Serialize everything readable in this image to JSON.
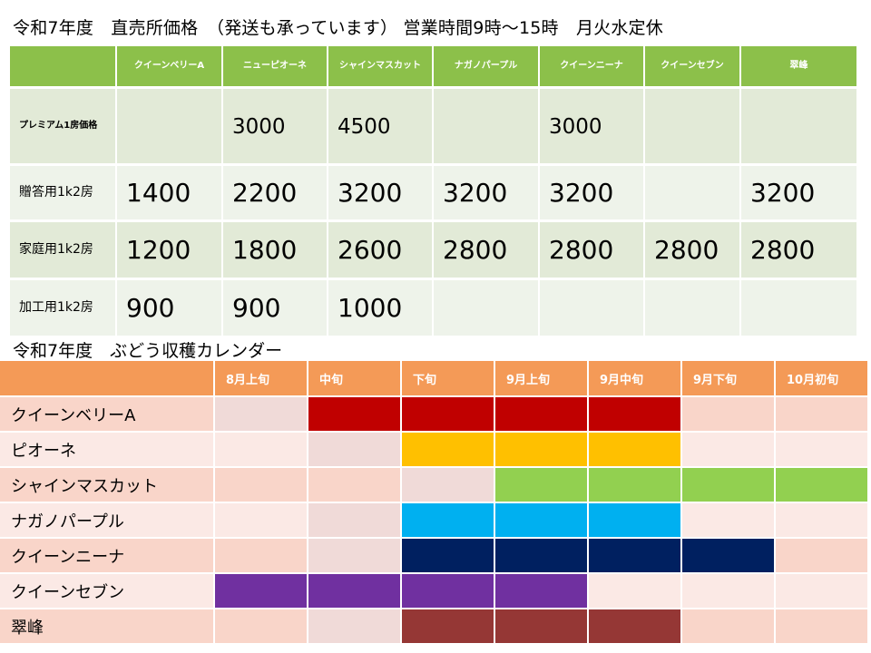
{
  "header": {
    "price_title": "令和7年度　直売所価格　（発送も承っています）  営業時間9時～15時　月火水定休",
    "calendar_title": "令和7年度　ぶどう収穫カレンダー"
  },
  "price_table": {
    "columns": [
      "クイーンベリーA",
      "ニューピオーネ",
      "シャインマスカット",
      "ナガノパープル",
      "クイーンニーナ",
      "クイーンセブン",
      "翠峰"
    ],
    "rows": [
      {
        "label": "プレミアム1房価格",
        "values": [
          "",
          "3000",
          "4500",
          "",
          "3000",
          "",
          ""
        ]
      },
      {
        "label": "贈答用1k2房",
        "values": [
          "1400",
          "2200",
          "3200",
          "3200",
          "3200",
          "",
          "3200"
        ]
      },
      {
        "label": "家庭用1k2房",
        "values": [
          "1200",
          "1800",
          "2600",
          "2800",
          "2800",
          "2800",
          "2800"
        ]
      },
      {
        "label": "加工用1k2房",
        "values": [
          "900",
          "900",
          "1000",
          "",
          "",
          "",
          ""
        ]
      }
    ]
  },
  "calendar": {
    "periods": [
      "8月上旬",
      "中旬",
      "下旬",
      "9月上旬",
      "9月中旬",
      "9月下旬",
      "10月初旬"
    ],
    "colors": {
      "header": "#f49a57",
      "クイーンベリーA": "#c00000",
      "ピオーネ": "#ffc000",
      "シャインマスカット": "#92d050",
      "ナガノパープル": "#00b0f0",
      "クイーンニーナ": "#002060",
      "クイーンセブン": "#7030a0",
      "翠峰": "#953735"
    },
    "varieties": [
      {
        "name": "クイーンベリーA",
        "harvest": [
          false,
          true,
          true,
          true,
          true,
          false,
          false
        ]
      },
      {
        "name": "ピオーネ",
        "harvest": [
          false,
          false,
          true,
          true,
          true,
          false,
          false
        ]
      },
      {
        "name": "シャインマスカット",
        "harvest": [
          false,
          false,
          false,
          true,
          true,
          true,
          true
        ]
      },
      {
        "name": "ナガノパープル",
        "harvest": [
          false,
          false,
          true,
          true,
          true,
          false,
          false
        ]
      },
      {
        "name": "クイーンニーナ",
        "harvest": [
          false,
          false,
          true,
          true,
          true,
          true,
          false
        ]
      },
      {
        "name": "クイーンセブン",
        "harvest": [
          true,
          true,
          true,
          true,
          false,
          false,
          false
        ]
      },
      {
        "name": "翠峰",
        "harvest": [
          false,
          false,
          true,
          true,
          true,
          false,
          false
        ]
      }
    ]
  }
}
